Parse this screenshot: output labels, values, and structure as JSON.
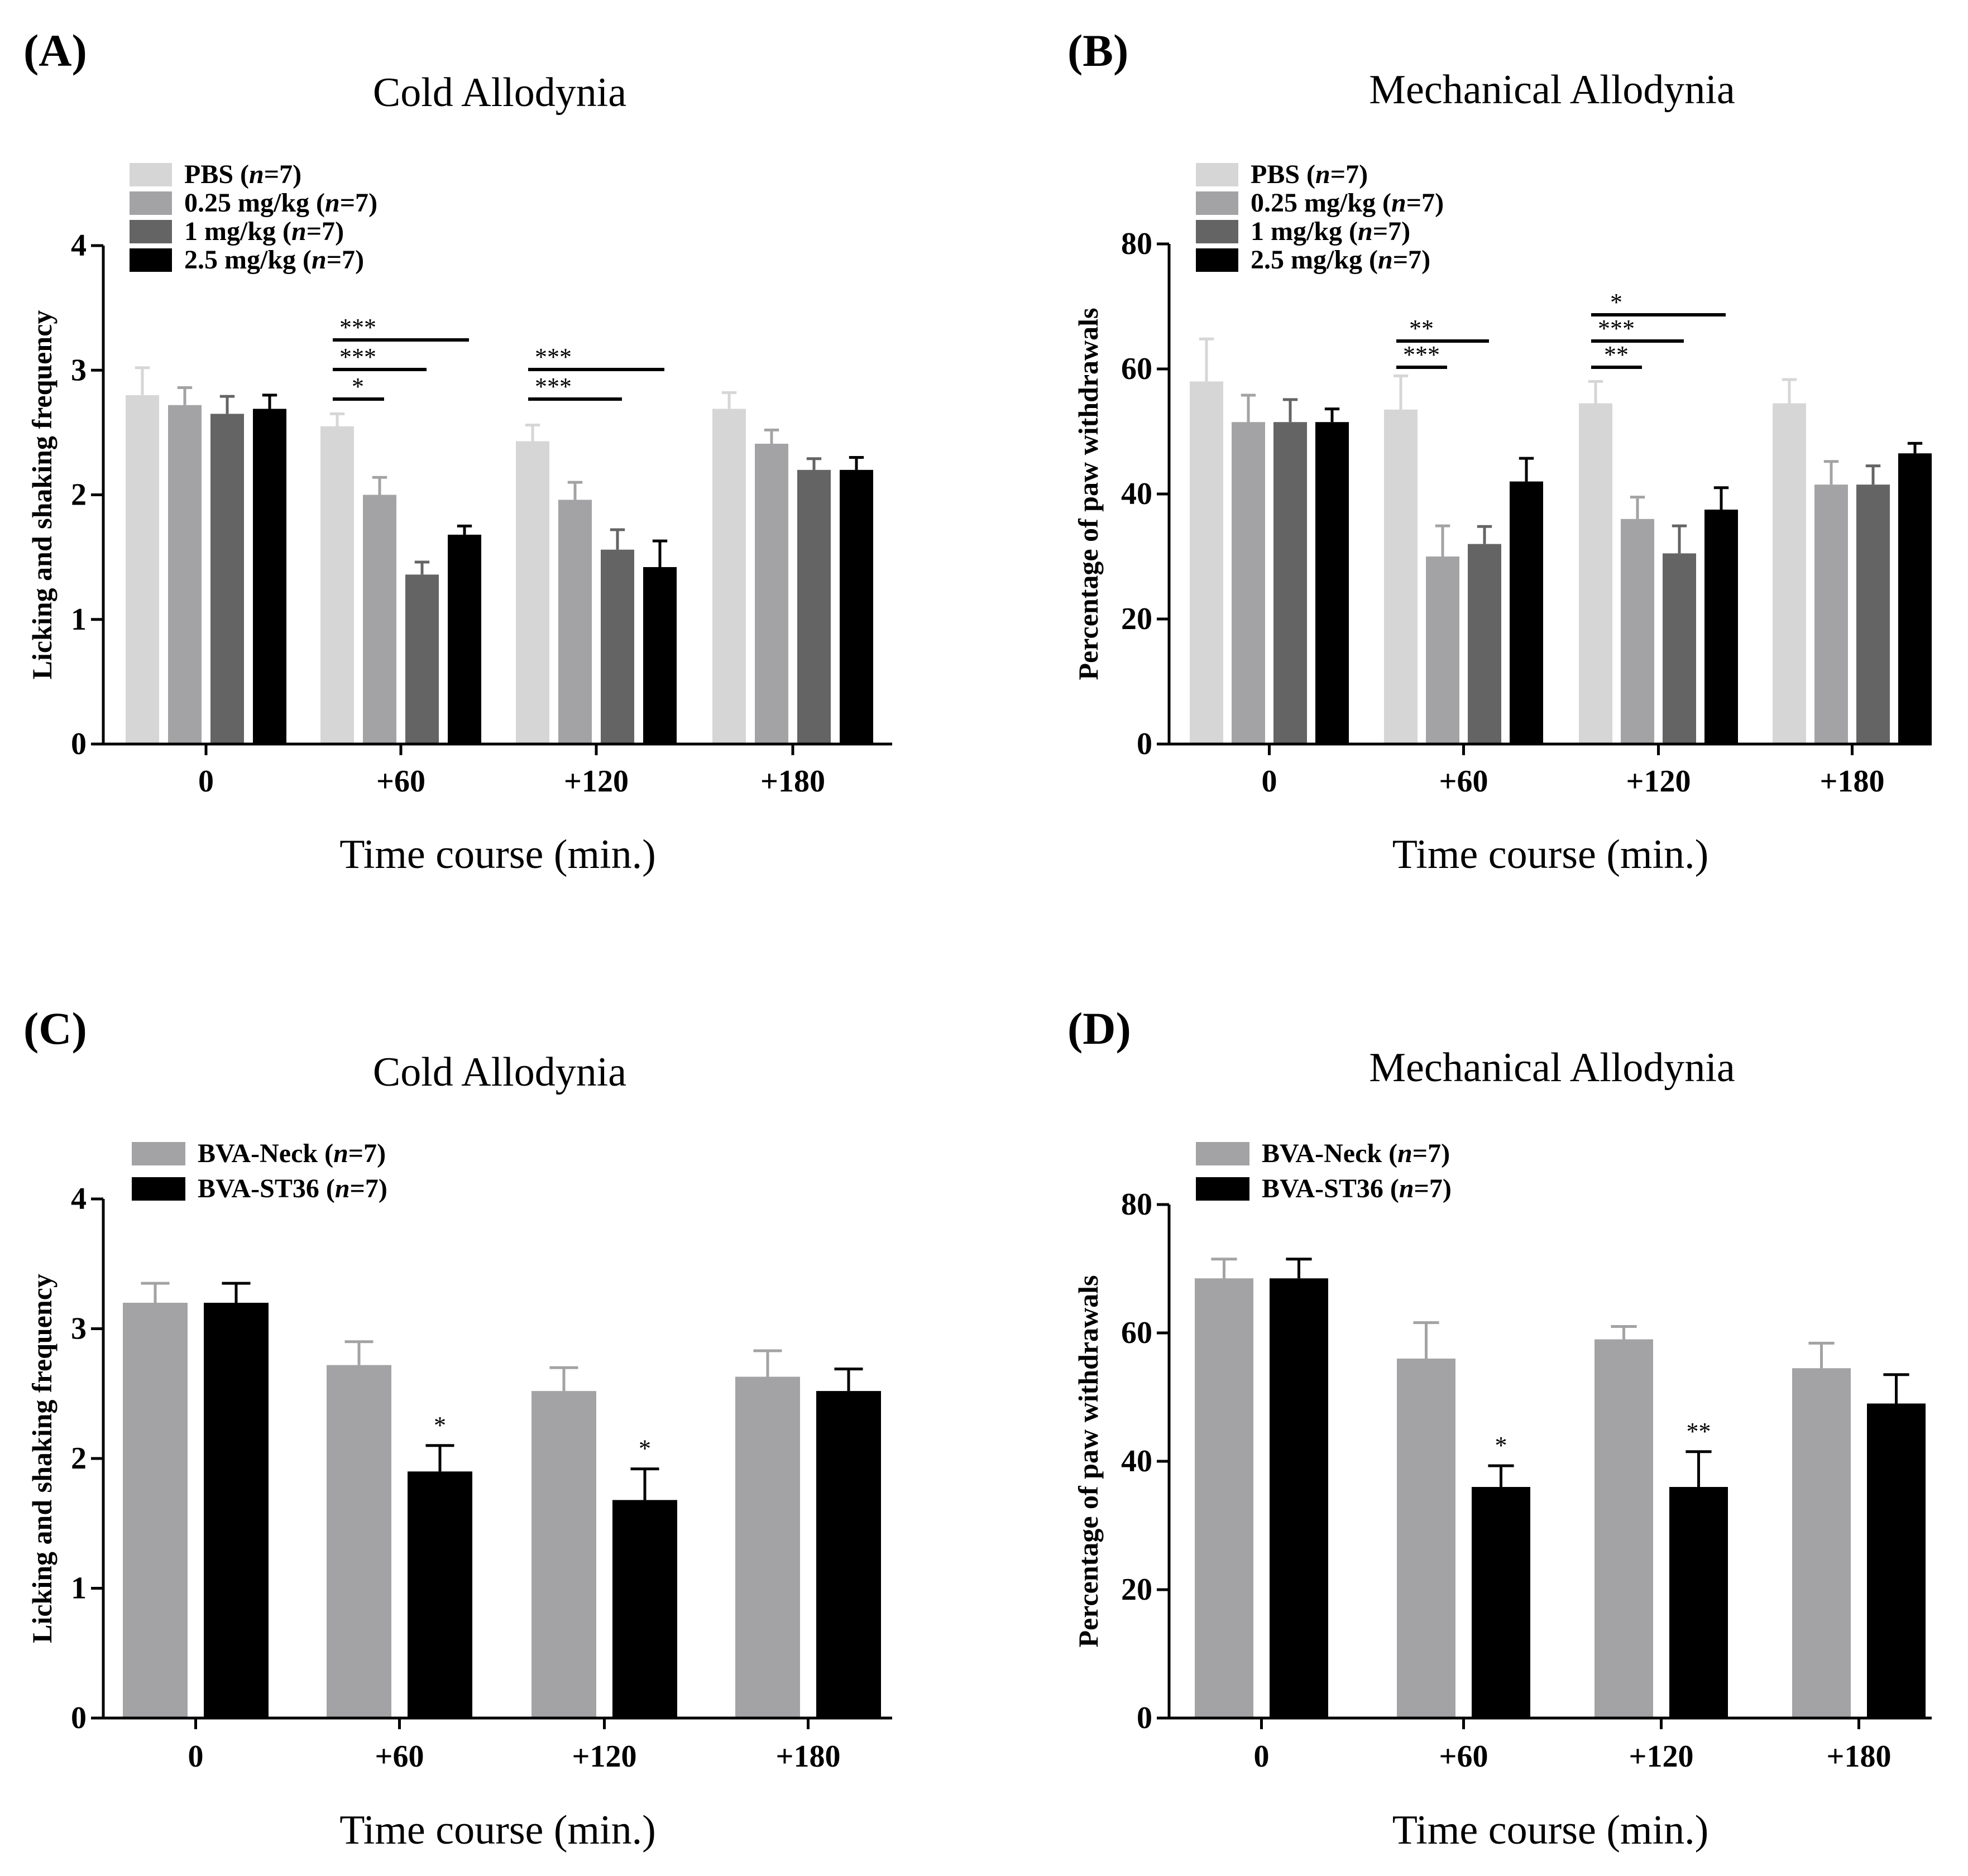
{
  "chart_data": [
    {
      "panel": "(A)",
      "type": "bar",
      "title": "Cold Allodynia",
      "xlabel": "Time course (min.)",
      "ylabel": "Licking and shaking frequency",
      "ylim": [
        0,
        4
      ],
      "yticks": [
        "0",
        "1",
        "2",
        "3",
        "4"
      ],
      "categories": [
        "0",
        "+60",
        "+120",
        "+180"
      ],
      "series": [
        {
          "name": "PBS",
          "legend_n": "n",
          "legend_eq": "=7",
          "color": "#d6d6d6",
          "values": [
            2.8,
            2.55,
            2.43,
            2.69
          ],
          "errors": [
            0.22,
            0.1,
            0.13,
            0.13
          ]
        },
        {
          "name": "0.25 mg/kg",
          "legend_n": "n",
          "legend_eq": "=7",
          "color": "#a3a3a5",
          "values": [
            2.72,
            2.0,
            1.96,
            2.41
          ],
          "errors": [
            0.14,
            0.14,
            0.14,
            0.11
          ]
        },
        {
          "name": "1 mg/kg",
          "legend_n": "n",
          "legend_eq": "=7",
          "color": "#646464",
          "values": [
            2.65,
            1.36,
            1.56,
            2.2
          ],
          "errors": [
            0.14,
            0.1,
            0.16,
            0.09
          ]
        },
        {
          "name": "2.5 mg/kg",
          "legend_n": "n",
          "legend_eq": "=7",
          "color": "#000000",
          "values": [
            2.69,
            1.68,
            1.42,
            2.2
          ],
          "errors": [
            0.11,
            0.07,
            0.21,
            0.1
          ]
        }
      ],
      "significance": [
        {
          "category": 1,
          "from": 0,
          "to": 1,
          "label": "*",
          "level": 0
        },
        {
          "category": 1,
          "from": 0,
          "to": 2,
          "label": "***",
          "level": 1
        },
        {
          "category": 1,
          "from": 0,
          "to": 3,
          "label": "***",
          "level": 2
        },
        {
          "category": 2,
          "from": 0,
          "to": 2,
          "label": "***",
          "level": 0
        },
        {
          "category": 2,
          "from": 0,
          "to": 3,
          "label": "***",
          "level": 1
        }
      ]
    },
    {
      "panel": "(B)",
      "type": "bar",
      "title": "Mechanical Allodynia",
      "xlabel": "Time course (min.)",
      "ylabel": "Percentage of paw withdrawals",
      "ylim": [
        0,
        80
      ],
      "yticks": [
        "0",
        "20",
        "40",
        "60",
        "80"
      ],
      "categories": [
        "0",
        "+60",
        "+120",
        "+180"
      ],
      "series": [
        {
          "name": "PBS",
          "legend_n": "n",
          "legend_eq": "=7",
          "color": "#d6d6d6",
          "values": [
            58,
            53.5,
            54.5,
            54.5
          ],
          "errors": [
            6.8,
            5.4,
            3.5,
            3.8
          ]
        },
        {
          "name": "0.25 mg/kg",
          "legend_n": "n",
          "legend_eq": "=7",
          "color": "#a3a3a5",
          "values": [
            51.5,
            30,
            36,
            41.5
          ],
          "errors": [
            4.3,
            4.9,
            3.5,
            3.7
          ]
        },
        {
          "name": "1 mg/kg",
          "legend_n": "n",
          "legend_eq": "=7",
          "color": "#646464",
          "values": [
            51.5,
            32,
            30.5,
            41.5
          ],
          "errors": [
            3.6,
            2.8,
            4.4,
            3
          ]
        },
        {
          "name": "2.5 mg/kg",
          "legend_n": "n",
          "legend_eq": "=7",
          "color": "#000000",
          "values": [
            51.5,
            42,
            37.5,
            46.5
          ],
          "errors": [
            2.1,
            3.7,
            3.5,
            1.6
          ]
        }
      ],
      "significance": [
        {
          "category": 1,
          "from": 0,
          "to": 1,
          "label": "***",
          "level": 0
        },
        {
          "category": 1,
          "from": 0,
          "to": 2,
          "label": "**",
          "level": 1
        },
        {
          "category": 2,
          "from": 0,
          "to": 1,
          "label": "**",
          "level": 0
        },
        {
          "category": 2,
          "from": 0,
          "to": 2,
          "label": "***",
          "level": 1
        },
        {
          "category": 2,
          "from": 0,
          "to": 3,
          "label": "*",
          "level": 2
        }
      ]
    },
    {
      "panel": "(C)",
      "type": "bar",
      "title": "Cold Allodynia",
      "xlabel": "Time course (min.)",
      "ylabel": "Licking and shaking frequency",
      "ylim": [
        0,
        4
      ],
      "yticks": [
        "0",
        "1",
        "2",
        "3",
        "4"
      ],
      "categories": [
        "0",
        "+60",
        "+120",
        "+180"
      ],
      "series": [
        {
          "name": "BVA-Neck",
          "legend_n": "n",
          "legend_eq": "=7",
          "color": "#a3a3a5",
          "values": [
            3.2,
            2.72,
            2.52,
            2.63
          ],
          "errors": [
            0.15,
            0.18,
            0.18,
            0.2
          ]
        },
        {
          "name": "BVA-ST36",
          "legend_n": "n",
          "legend_eq": "=7",
          "color": "#000000",
          "values": [
            3.2,
            1.9,
            1.68,
            2.52
          ],
          "errors": [
            0.15,
            0.2,
            0.24,
            0.17
          ]
        }
      ],
      "annotations": [
        {
          "category": 1,
          "series": 1,
          "label": "*"
        },
        {
          "category": 2,
          "series": 1,
          "label": "*"
        }
      ]
    },
    {
      "panel": "(D)",
      "type": "bar",
      "title": "Mechanical Allodynia",
      "xlabel": "Time course (min.)",
      "ylabel": "Percentage of paw withdrawals",
      "ylim": [
        0,
        80
      ],
      "yticks": [
        "0",
        "20",
        "40",
        "60",
        "80"
      ],
      "categories": [
        "0",
        "+60",
        "+120",
        "+180"
      ],
      "series": [
        {
          "name": "BVA-Neck",
          "legend_n": "n",
          "legend_eq": "=7",
          "color": "#a3a3a5",
          "values": [
            68.5,
            56,
            59,
            54.5
          ],
          "errors": [
            3,
            5.6,
            2,
            3.9
          ]
        },
        {
          "name": "BVA-ST36",
          "legend_n": "n",
          "legend_eq": "=7",
          "color": "#000000",
          "values": [
            68.5,
            36,
            36,
            49
          ],
          "errors": [
            3,
            3.3,
            5.5,
            4.5
          ]
        }
      ],
      "annotations": [
        {
          "category": 1,
          "series": 1,
          "label": "*"
        },
        {
          "category": 2,
          "series": 1,
          "label": "**"
        }
      ]
    }
  ]
}
